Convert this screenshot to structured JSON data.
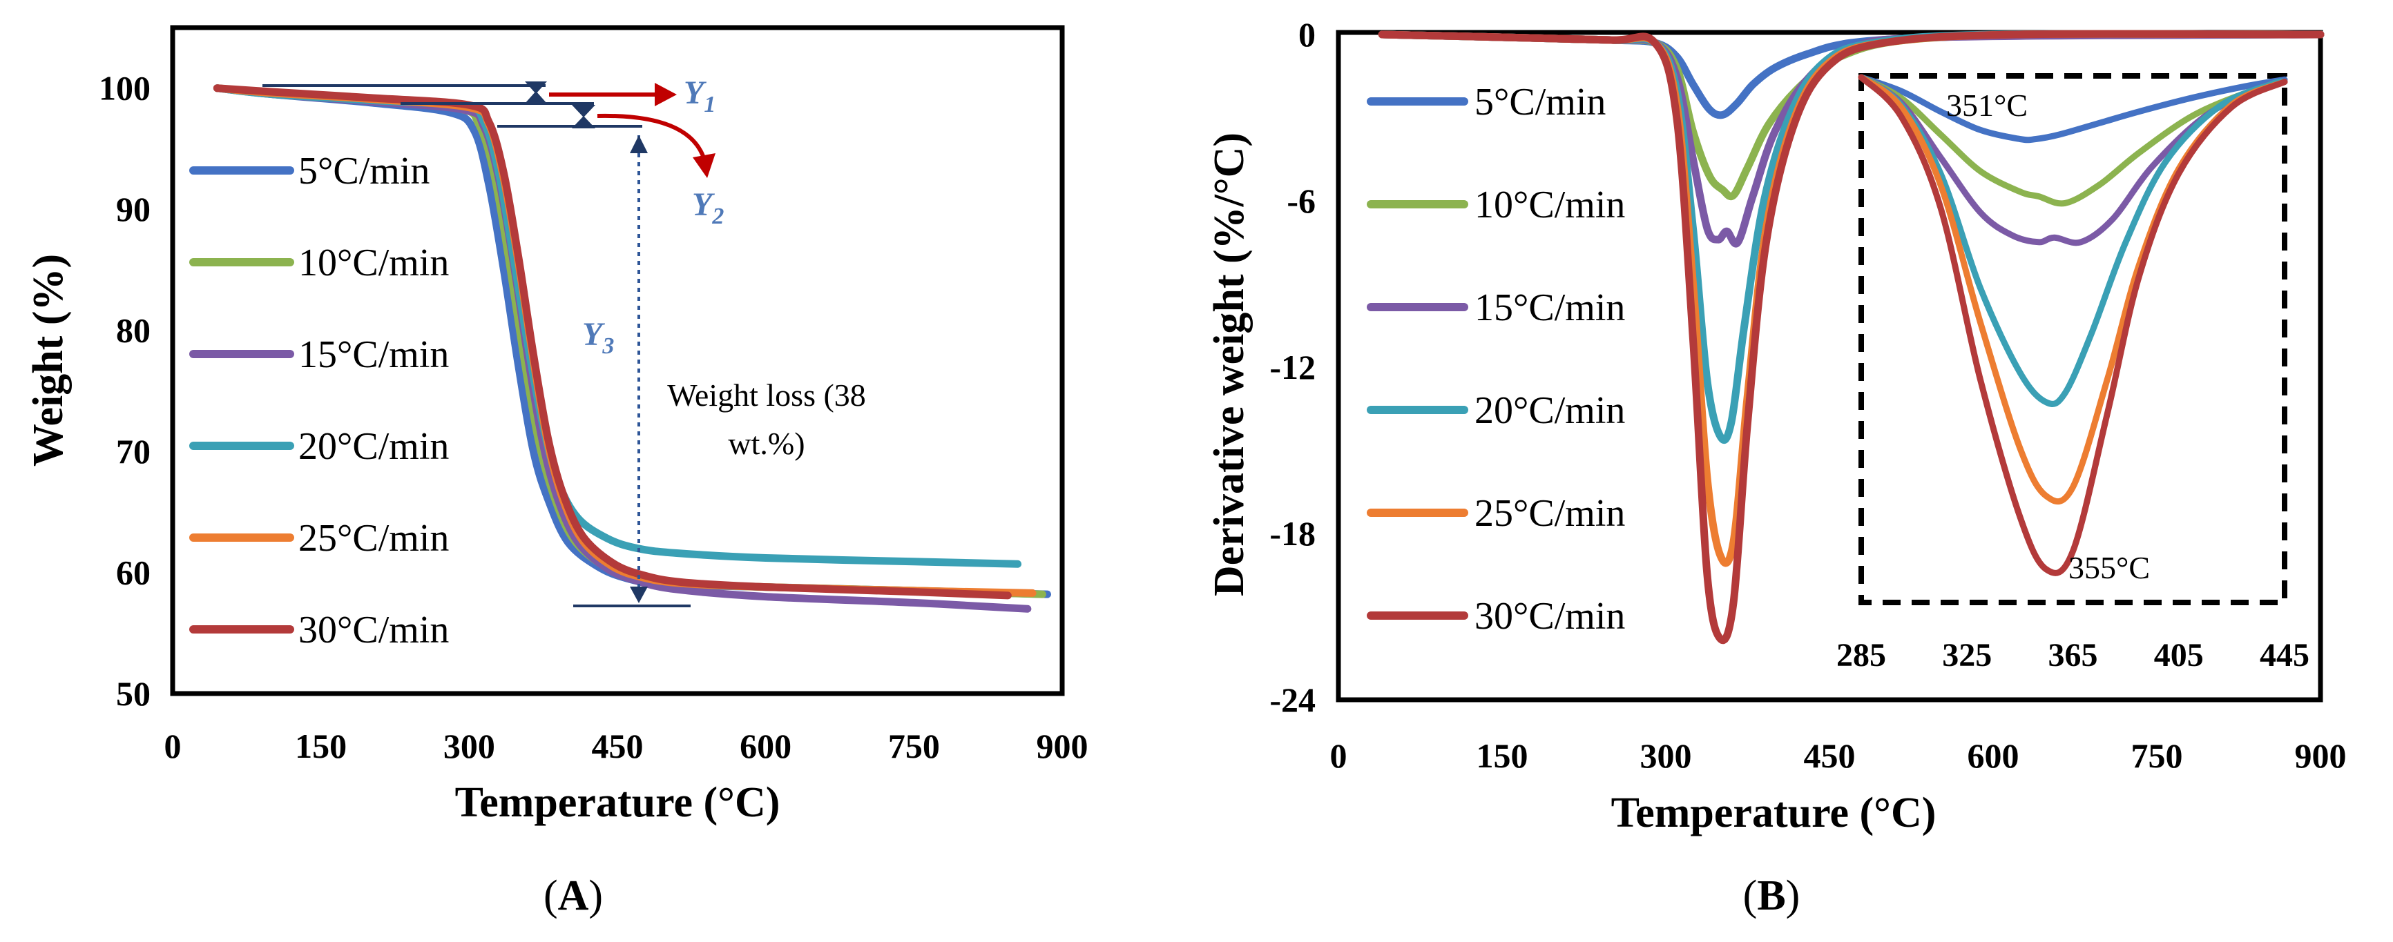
{
  "chart_data": [
    {
      "panel_label": "A",
      "type": "line",
      "title": "",
      "xlabel": "Temperature (°C)",
      "ylabel": "Weight (%)",
      "xlim": [
        0,
        900
      ],
      "ylim": [
        50,
        105
      ],
      "xticks": [
        0,
        150,
        300,
        450,
        600,
        750,
        900
      ],
      "yticks": [
        50,
        60,
        70,
        80,
        90,
        100
      ],
      "grid": false,
      "legend_position": "left",
      "series": [
        {
          "name": "5°C/min",
          "color": "#4472c4",
          "x": [
            45,
            100,
            200,
            280,
            305,
            320,
            335,
            350,
            365,
            380,
            400,
            430,
            460,
            500,
            600,
            750,
            885
          ],
          "y": [
            100,
            99.5,
            98.8,
            98.0,
            96.5,
            92,
            85,
            77,
            70,
            66,
            62.5,
            60.5,
            59.5,
            59,
            58.8,
            58.5,
            58.2
          ]
        },
        {
          "name": "10°C/min",
          "color": "#8cb34f",
          "x": [
            45,
            100,
            200,
            290,
            310,
            325,
            340,
            355,
            370,
            385,
            405,
            435,
            465,
            505,
            600,
            750,
            880
          ],
          "y": [
            100,
            99.6,
            99.0,
            98.3,
            97,
            93,
            86,
            78,
            71,
            66.5,
            62.8,
            60.6,
            59.6,
            59.1,
            58.8,
            58.5,
            58.2
          ]
        },
        {
          "name": "15°C/min",
          "color": "#7b5aa6",
          "x": [
            45,
            100,
            200,
            295,
            315,
            330,
            345,
            360,
            375,
            390,
            410,
            440,
            470,
            510,
            600,
            750,
            865
          ],
          "y": [
            100,
            99.5,
            98.9,
            98.2,
            96.8,
            92.5,
            85.5,
            77.5,
            70.5,
            66,
            62.5,
            60.3,
            59.3,
            58.6,
            58.0,
            57.5,
            57.0
          ]
        },
        {
          "name": "20°C/min",
          "color": "#3aa0b5",
          "x": [
            45,
            100,
            200,
            295,
            315,
            330,
            345,
            360,
            375,
            390,
            410,
            440,
            470,
            510,
            600,
            750,
            855
          ],
          "y": [
            100,
            99.5,
            99.0,
            98.5,
            97.2,
            93,
            86,
            78.5,
            72,
            67.5,
            64.5,
            62.8,
            62,
            61.6,
            61.2,
            60.9,
            60.7
          ]
        },
        {
          "name": "25°C/min",
          "color": "#ed7d31",
          "x": [
            45,
            100,
            200,
            300,
            320,
            335,
            350,
            365,
            380,
            395,
            415,
            445,
            475,
            515,
            600,
            750,
            870
          ],
          "y": [
            100,
            99.6,
            99.1,
            98.4,
            97,
            92.5,
            85.5,
            77.5,
            70.5,
            66,
            62.6,
            60.5,
            59.6,
            59.1,
            58.8,
            58.5,
            58.3
          ]
        },
        {
          "name": "30°C/min",
          "color": "#b33a3a",
          "x": [
            45,
            100,
            200,
            300,
            320,
            335,
            350,
            365,
            380,
            395,
            415,
            445,
            475,
            515,
            600,
            750,
            845
          ],
          "y": [
            100,
            99.7,
            99.2,
            98.6,
            97.2,
            93,
            86,
            78,
            71,
            66.5,
            63,
            60.8,
            59.8,
            59.2,
            58.8,
            58.4,
            58.1
          ]
        }
      ],
      "annotations": {
        "y1_label": "Y",
        "y1_sub": "1",
        "y2_label": "Y",
        "y2_sub": "2",
        "y3_label": "Y",
        "y3_sub": "3",
        "weight_loss_line1": "Weight loss (38",
        "weight_loss_line2": "wt.%)",
        "arrow_color": "#c00000",
        "marker_color": "#1f3864"
      }
    },
    {
      "panel_label": "B",
      "type": "line",
      "title": "",
      "xlabel": "Temperature (°C)",
      "ylabel": "Derivative weight (%/°C)",
      "xlim": [
        0,
        900
      ],
      "ylim": [
        -24,
        0
      ],
      "xticks": [
        0,
        150,
        300,
        450,
        600,
        750,
        900
      ],
      "yticks": [
        0,
        -6,
        -12,
        -18,
        -24
      ],
      "grid": false,
      "legend_position": "left",
      "series": [
        {
          "name": "5°C/min",
          "color": "#4472c4",
          "x": [
            40,
            150,
            250,
            290,
            310,
            325,
            340,
            352,
            365,
            380,
            400,
            430,
            470,
            550,
            700,
            900
          ],
          "y": [
            0,
            -0.1,
            -0.2,
            -0.3,
            -0.8,
            -1.8,
            -2.7,
            -2.9,
            -2.5,
            -1.8,
            -1.2,
            -0.7,
            -0.3,
            -0.1,
            0,
            0
          ]
        },
        {
          "name": "10°C/min",
          "color": "#8cb34f",
          "x": [
            40,
            150,
            250,
            290,
            310,
            325,
            340,
            352,
            362,
            375,
            395,
            425,
            460,
            520,
            650,
            900
          ],
          "y": [
            0,
            -0.1,
            -0.2,
            -0.3,
            -1.2,
            -3.5,
            -5.1,
            -5.6,
            -5.8,
            -4.8,
            -3.2,
            -1.8,
            -0.8,
            -0.2,
            0,
            0
          ]
        },
        {
          "name": "15°C/min",
          "color": "#7b5aa6",
          "x": [
            40,
            150,
            250,
            290,
            310,
            325,
            338,
            348,
            356,
            366,
            380,
            400,
            430,
            470,
            550,
            900
          ],
          "y": [
            0,
            -0.1,
            -0.2,
            -0.3,
            -1.5,
            -4.5,
            -7.0,
            -7.4,
            -7.1,
            -7.5,
            -5.8,
            -3.5,
            -1.6,
            -0.5,
            -0.1,
            0
          ]
        },
        {
          "name": "20°C/min",
          "color": "#3aa0b5",
          "x": [
            40,
            150,
            250,
            290,
            310,
            325,
            338,
            350,
            360,
            372,
            390,
            415,
            445,
            490,
            600,
            900
          ],
          "y": [
            0,
            -0.1,
            -0.2,
            -0.3,
            -2.0,
            -7.0,
            -12.5,
            -14.5,
            -14.0,
            -10.5,
            -6.0,
            -2.8,
            -1.0,
            -0.3,
            0,
            0
          ]
        },
        {
          "name": "25°C/min",
          "color": "#ed7d31",
          "x": [
            40,
            150,
            250,
            290,
            310,
            325,
            338,
            350,
            362,
            375,
            392,
            418,
            450,
            500,
            620,
            900
          ],
          "y": [
            0,
            -0.1,
            -0.2,
            -0.3,
            -2.5,
            -9.0,
            -16.0,
            -18.8,
            -18.3,
            -13.0,
            -7.0,
            -3.0,
            -1.0,
            -0.3,
            0,
            0
          ]
        },
        {
          "name": "30°C/min",
          "color": "#b33a3a",
          "x": [
            40,
            150,
            250,
            290,
            310,
            325,
            338,
            350,
            362,
            375,
            392,
            418,
            450,
            500,
            620,
            900
          ],
          "y": [
            0,
            -0.1,
            -0.2,
            -0.3,
            -3.0,
            -11.0,
            -19.5,
            -21.8,
            -20.5,
            -14.0,
            -7.5,
            -3.2,
            -1.1,
            -0.3,
            0,
            0
          ]
        }
      ],
      "inset": {
        "xlim": [
          285,
          445
        ],
        "xticks": [
          285,
          325,
          365,
          405,
          445
        ],
        "peak_label_1": "351°C",
        "peak_label_2": "355°C",
        "border": "dashed",
        "series": [
          {
            "name": "5°C/min",
            "color": "#4472c4",
            "x": [
              285,
              300,
              315,
              330,
              345,
              351,
              360,
              375,
              390,
              410,
              430,
              445
            ],
            "y": [
              -0.3,
              -0.9,
              -1.8,
              -2.6,
              -3.0,
              -3.0,
              -2.8,
              -2.3,
              -1.8,
              -1.2,
              -0.7,
              -0.4
            ]
          },
          {
            "name": "10°C/min",
            "color": "#8cb34f",
            "x": [
              285,
              300,
              315,
              330,
              345,
              352,
              362,
              375,
              390,
              410,
              430,
              445
            ],
            "y": [
              -0.3,
              -1.2,
              -2.8,
              -4.4,
              -5.3,
              -5.5,
              -5.8,
              -5.0,
              -3.6,
              -2.0,
              -1.0,
              -0.5
            ]
          },
          {
            "name": "15°C/min",
            "color": "#7b5aa6",
            "x": [
              285,
              300,
              315,
              330,
              342,
              352,
              358,
              368,
              380,
              395,
              415,
              435,
              445
            ],
            "y": [
              -0.3,
              -1.4,
              -3.8,
              -6.2,
              -7.2,
              -7.5,
              -7.3,
              -7.5,
              -6.5,
              -4.2,
              -2.0,
              -0.8,
              -0.5
            ]
          },
          {
            "name": "20°C/min",
            "color": "#3aa0b5",
            "x": [
              285,
              300,
              315,
              330,
              345,
              355,
              362,
              372,
              385,
              400,
              420,
              440,
              445
            ],
            "y": [
              -0.3,
              -1.5,
              -4.5,
              -9.5,
              -13.2,
              -14.5,
              -14.1,
              -11.5,
              -7.5,
              -4.0,
              -1.6,
              -0.6,
              -0.5
            ]
          },
          {
            "name": "25°C/min",
            "color": "#ed7d31",
            "x": [
              285,
              300,
              315,
              330,
              345,
              355,
              365,
              378,
              390,
              405,
              425,
              445
            ],
            "y": [
              -0.3,
              -1.6,
              -5.0,
              -11.0,
              -16.5,
              -18.6,
              -18.2,
              -13.5,
              -8.5,
              -4.3,
              -1.5,
              -0.5
            ]
          },
          {
            "name": "30°C/min",
            "color": "#b33a3a",
            "x": [
              285,
              300,
              315,
              330,
              345,
              355,
              365,
              378,
              390,
              405,
              425,
              445
            ],
            "y": [
              -0.3,
              -2.0,
              -6.0,
              -13.5,
              -19.5,
              -21.8,
              -21.0,
              -15.0,
              -9.0,
              -4.5,
              -1.6,
              -0.5
            ]
          }
        ]
      }
    }
  ]
}
